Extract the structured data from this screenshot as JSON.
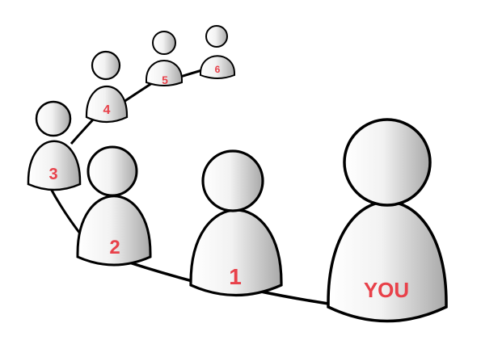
{
  "diagram": {
    "figures": [
      {
        "id": "you",
        "label": "YOU"
      },
      {
        "id": "p1",
        "label": "1"
      },
      {
        "id": "p2",
        "label": "2"
      },
      {
        "id": "p3",
        "label": "3"
      },
      {
        "id": "p4",
        "label": "4"
      },
      {
        "id": "p5",
        "label": "5"
      },
      {
        "id": "p6",
        "label": "6"
      }
    ],
    "connections": [
      [
        "you",
        "p1"
      ],
      [
        "p1",
        "p2"
      ],
      [
        "p2",
        "p3"
      ],
      [
        "p3",
        "p4"
      ],
      [
        "p4",
        "p5"
      ],
      [
        "p5",
        "p6"
      ]
    ],
    "colors": {
      "label": "#e8414a",
      "outline": "#000000",
      "fill_light": "#ffffff",
      "fill_dark": "#a8a8a8",
      "connector": "#000000"
    }
  }
}
